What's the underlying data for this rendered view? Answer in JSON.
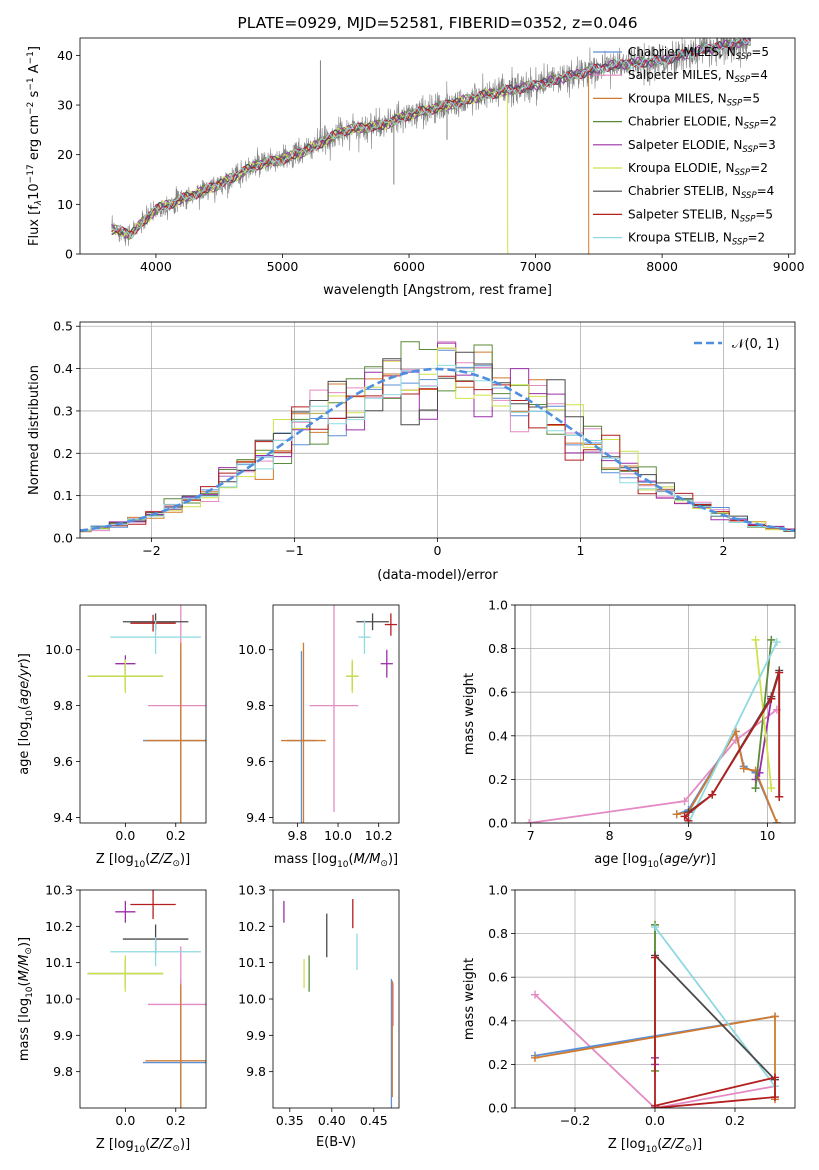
{
  "colors": {
    "chabrier_miles": "#5b8fd6",
    "salpeter_miles": "#e48ac4",
    "kroupa_miles": "#d27a2e",
    "chabrier_elodie": "#5a8a3a",
    "salpeter_elodie": "#9b2fa8",
    "kroupa_elodie": "#cfe24a",
    "chabrier_stelib": "#4a4a4a",
    "salpeter_stelib": "#b41f1f",
    "kroupa_stelib": "#8fd9e0",
    "data": "#808080",
    "normal": "#4f8fe0",
    "grid": "#b0b0b0"
  },
  "chart_data": [
    {
      "id": "spectrum",
      "type": "line",
      "title": "PLATE=0929, MJD=52581, FIBERID=0352, z=0.046",
      "xlabel": "wavelength [Angstrom, rest frame]",
      "ylabel_parts": [
        "Flux [f",
        "λ",
        "10",
        "−17",
        " erg cm",
        "−2",
        " s",
        "−1",
        " A",
        "−1",
        "]"
      ],
      "xlim": [
        3400,
        9050
      ],
      "ylim": [
        0,
        43.5
      ],
      "xticks": [
        4000,
        5000,
        6000,
        7000,
        8000,
        9000
      ],
      "yticks": [
        0,
        10,
        20,
        30,
        40
      ],
      "grid": false,
      "legend_position": "top-right",
      "legend": [
        {
          "base": "Chabrier MILES, N",
          "n": "5",
          "color": "chabrier_miles"
        },
        {
          "base": "Salpeter MILES, N",
          "n": "4",
          "color": "salpeter_miles"
        },
        {
          "base": "Kroupa MILES, N",
          "n": "5",
          "color": "kroupa_miles"
        },
        {
          "base": "Chabrier ELODIE, N",
          "n": "2",
          "color": "chabrier_elodie"
        },
        {
          "base": "Salpeter ELODIE, N",
          "n": "3",
          "color": "salpeter_elodie"
        },
        {
          "base": "Kroupa ELODIE, N",
          "n": "2",
          "color": "kroupa_elodie"
        },
        {
          "base": "Chabrier STELIB, N",
          "n": "4",
          "color": "chabrier_stelib"
        },
        {
          "base": "Salpeter STELIB, N",
          "n": "5",
          "color": "salpeter_stelib"
        },
        {
          "base": "Kroupa STELIB, N",
          "n": "2",
          "color": "kroupa_stelib"
        }
      ],
      "legend_sub": "SSP",
      "continuum": [
        [
          3650,
          5
        ],
        [
          3800,
          4
        ],
        [
          4000,
          9
        ],
        [
          4200,
          11
        ],
        [
          4500,
          14
        ],
        [
          4800,
          18
        ],
        [
          5000,
          19
        ],
        [
          5200,
          21
        ],
        [
          5500,
          25
        ],
        [
          5800,
          26
        ],
        [
          6000,
          28
        ],
        [
          6300,
          30
        ],
        [
          6600,
          32
        ],
        [
          7000,
          34
        ],
        [
          7300,
          36
        ],
        [
          7600,
          38
        ],
        [
          8000,
          39
        ],
        [
          8300,
          41
        ],
        [
          8700,
          43
        ]
      ],
      "spikes": [
        [
          5300,
          39
        ],
        [
          5880,
          14
        ],
        [
          6300,
          23
        ]
      ],
      "model_drops": [
        [
          6780,
          "kroupa_elodie"
        ],
        [
          7420,
          "kroupa_miles"
        ]
      ]
    },
    {
      "id": "residuals",
      "type": "histogram",
      "xlabel": "(data-model)/error",
      "ylabel": "Normed distribution",
      "xlim": [
        -2.5,
        2.5
      ],
      "ylim": [
        0,
        0.51
      ],
      "xticks": [
        -2,
        -1,
        0,
        1,
        2
      ],
      "yticks": [
        0.0,
        0.1,
        0.2,
        0.3,
        0.4,
        0.5
      ],
      "grid": true,
      "legend_position": "top-right",
      "legend": [
        {
          "label": "𝒩(0, 1)",
          "color": "normal",
          "style": "dashed"
        }
      ],
      "bins": 40
    },
    {
      "id": "age_vs_z",
      "type": "errorbar",
      "xlabel": "Z [log10(Z/Z⊙)]",
      "ylabel": "age [log10(age/yr)]",
      "xlim": [
        -0.18,
        0.32
      ],
      "ylim": [
        9.38,
        10.16
      ],
      "xticks": [
        0.0,
        0.2
      ],
      "yticks": [
        9.4,
        9.6,
        9.8,
        10.0
      ],
      "grid": false,
      "points": [
        {
          "x": 0.22,
          "y": 9.675,
          "xerr": 0.15,
          "yerr": 0.32,
          "color": "chabrier_miles"
        },
        {
          "x": 0.22,
          "y": 9.8,
          "xerr": 0.13,
          "yerr": 0.38,
          "color": "salpeter_miles"
        },
        {
          "x": 0.22,
          "y": 9.675,
          "xerr": 0.14,
          "yerr": 0.35,
          "color": "kroupa_miles"
        },
        {
          "x": 0.0,
          "y": 9.905,
          "xerr": 0.15,
          "yerr": 0.05,
          "color": "chabrier_elodie"
        },
        {
          "x": 0.0,
          "y": 9.95,
          "xerr": 0.04,
          "yerr": 0.03,
          "color": "salpeter_elodie"
        },
        {
          "x": 0.0,
          "y": 9.905,
          "xerr": 0.15,
          "yerr": 0.06,
          "color": "kroupa_elodie"
        },
        {
          "x": 0.12,
          "y": 10.1,
          "xerr": 0.13,
          "yerr": 0.03,
          "color": "chabrier_stelib"
        },
        {
          "x": 0.11,
          "y": 10.095,
          "xerr": 0.09,
          "yerr": 0.03,
          "color": "salpeter_stelib"
        },
        {
          "x": 0.12,
          "y": 10.045,
          "xerr": 0.18,
          "yerr": 0.06,
          "color": "kroupa_stelib"
        }
      ]
    },
    {
      "id": "age_vs_mass",
      "type": "errorbar",
      "xlabel": "mass [log10(M/M⊙)]",
      "ylabel": "",
      "xlim": [
        9.68,
        10.3
      ],
      "ylim": [
        9.38,
        10.16
      ],
      "xticks": [
        9.8,
        10.0,
        10.2
      ],
      "yticks": [
        9.4,
        9.6,
        9.8,
        10.0
      ],
      "grid": false,
      "points": [
        {
          "x": 9.82,
          "y": 9.675,
          "xerr": 0.07,
          "yerr": 0.32,
          "color": "chabrier_miles"
        },
        {
          "x": 9.98,
          "y": 9.8,
          "xerr": 0.12,
          "yerr": 0.38,
          "color": "salpeter_miles"
        },
        {
          "x": 9.83,
          "y": 9.675,
          "xerr": 0.11,
          "yerr": 0.35,
          "color": "kroupa_miles"
        },
        {
          "x": 10.07,
          "y": 9.905,
          "xerr": 0.03,
          "yerr": 0.05,
          "color": "chabrier_elodie"
        },
        {
          "x": 10.24,
          "y": 9.95,
          "xerr": 0.03,
          "yerr": 0.05,
          "color": "salpeter_elodie"
        },
        {
          "x": 10.07,
          "y": 9.905,
          "xerr": 0.03,
          "yerr": 0.06,
          "color": "kroupa_elodie"
        },
        {
          "x": 10.17,
          "y": 10.1,
          "xerr": 0.08,
          "yerr": 0.03,
          "color": "chabrier_stelib"
        },
        {
          "x": 10.26,
          "y": 10.09,
          "xerr": 0.03,
          "yerr": 0.04,
          "color": "salpeter_stelib"
        },
        {
          "x": 10.13,
          "y": 10.045,
          "xerr": 0.03,
          "yerr": 0.06,
          "color": "kroupa_stelib"
        }
      ]
    },
    {
      "id": "weight_vs_age",
      "type": "line",
      "xlabel": "age [log10(age/yr)]",
      "ylabel": "mass weight",
      "xlim": [
        6.8,
        10.35
      ],
      "ylim": [
        0,
        1.0
      ],
      "xticks": [
        7,
        8,
        9,
        10
      ],
      "yticks": [
        0.0,
        0.2,
        0.4,
        0.6,
        0.8,
        1.0
      ],
      "grid": true,
      "series": [
        {
          "color": "salpeter_miles",
          "x": [
            6.98,
            8.95,
            9.6,
            10.12
          ],
          "y": [
            0.0,
            0.1,
            0.38,
            0.52
          ]
        },
        {
          "color": "chabrier_miles",
          "x": [
            8.85,
            9.0,
            9.6,
            9.7,
            9.85,
            10.12
          ],
          "y": [
            0.04,
            0.06,
            0.42,
            0.26,
            0.23,
            0.0
          ]
        },
        {
          "color": "kroupa_miles",
          "x": [
            8.85,
            9.0,
            9.6,
            9.7,
            9.85,
            10.12
          ],
          "y": [
            0.04,
            0.05,
            0.42,
            0.25,
            0.24,
            0.0
          ]
        },
        {
          "color": "salpeter_elodie",
          "x": [
            9.85,
            9.9,
            10.05
          ],
          "y": [
            0.2,
            0.23,
            0.57
          ]
        },
        {
          "color": "chabrier_elodie",
          "x": [
            9.85,
            10.05
          ],
          "y": [
            0.16,
            0.84
          ]
        },
        {
          "color": "kroupa_elodie",
          "x": [
            9.85,
            10.05
          ],
          "y": [
            0.84,
            0.16
          ]
        },
        {
          "color": "kroupa_stelib",
          "x": [
            9.0,
            10.12
          ],
          "y": [
            0.0,
            0.83
          ]
        },
        {
          "color": "chabrier_stelib",
          "x": [
            9.0,
            9.3,
            10.05,
            10.15,
            10.15
          ],
          "y": [
            0.05,
            0.13,
            0.58,
            0.7,
            0.12
          ]
        },
        {
          "color": "salpeter_stelib",
          "x": [
            9.0,
            8.95,
            9.3,
            10.05,
            10.15,
            10.15
          ],
          "y": [
            0.01,
            0.03,
            0.13,
            0.57,
            0.69,
            0.12
          ]
        }
      ]
    },
    {
      "id": "mass_vs_z",
      "type": "errorbar",
      "xlabel": "Z [log10(Z/Z⊙)]",
      "ylabel": "mass [log10(M/M⊙)]",
      "xlim": [
        -0.18,
        0.32
      ],
      "ylim": [
        9.7,
        10.3
      ],
      "xticks": [
        0.0,
        0.2
      ],
      "yticks": [
        9.8,
        9.9,
        10.0,
        10.1,
        10.2,
        10.3
      ],
      "grid": false,
      "points": [
        {
          "x": 0.22,
          "y": 9.825,
          "xerr": 0.15,
          "yerr": 0.23,
          "color": "chabrier_miles"
        },
        {
          "x": 0.22,
          "y": 9.985,
          "xerr": 0.13,
          "yerr": 0.16,
          "color": "salpeter_miles"
        },
        {
          "x": 0.22,
          "y": 9.83,
          "xerr": 0.14,
          "yerr": 0.21,
          "color": "kroupa_miles"
        },
        {
          "x": 0.0,
          "y": 10.07,
          "xerr": 0.15,
          "yerr": 0.04,
          "color": "chabrier_elodie"
        },
        {
          "x": 0.0,
          "y": 10.24,
          "xerr": 0.04,
          "yerr": 0.03,
          "color": "salpeter_elodie"
        },
        {
          "x": 0.0,
          "y": 10.07,
          "xerr": 0.15,
          "yerr": 0.05,
          "color": "kroupa_elodie"
        },
        {
          "x": 0.12,
          "y": 10.165,
          "xerr": 0.13,
          "yerr": 0.04,
          "color": "chabrier_stelib"
        },
        {
          "x": 0.11,
          "y": 10.26,
          "xerr": 0.09,
          "yerr": 0.04,
          "color": "salpeter_stelib"
        },
        {
          "x": 0.12,
          "y": 10.13,
          "xerr": 0.18,
          "yerr": 0.04,
          "color": "kroupa_stelib"
        }
      ]
    },
    {
      "id": "mass_vs_ebv",
      "type": "errorbar",
      "xlabel": "E(B-V)",
      "ylabel": "",
      "xlim": [
        0.33,
        0.48
      ],
      "ylim": [
        9.7,
        10.3
      ],
      "xticks": [
        0.35,
        0.4,
        0.45
      ],
      "yticks": [
        9.8,
        9.9,
        10.0,
        10.1,
        10.2,
        10.3
      ],
      "grid": false,
      "points": [
        {
          "x": 0.471,
          "y": 9.825,
          "xerr": 0.0,
          "yerr": 0.23,
          "color": "chabrier_miles"
        },
        {
          "x": 0.473,
          "y": 9.985,
          "xerr": 0.0,
          "yerr": 0.06,
          "color": "salpeter_miles"
        },
        {
          "x": 0.472,
          "y": 9.89,
          "xerr": 0.0,
          "yerr": 0.16,
          "color": "kroupa_miles"
        },
        {
          "x": 0.373,
          "y": 10.07,
          "xerr": 0.0,
          "yerr": 0.05,
          "color": "chabrier_elodie"
        },
        {
          "x": 0.343,
          "y": 10.24,
          "xerr": 0.0,
          "yerr": 0.03,
          "color": "salpeter_elodie"
        },
        {
          "x": 0.367,
          "y": 10.07,
          "xerr": 0.0,
          "yerr": 0.04,
          "color": "kroupa_elodie"
        },
        {
          "x": 0.394,
          "y": 10.175,
          "xerr": 0.0,
          "yerr": 0.06,
          "color": "chabrier_stelib"
        },
        {
          "x": 0.425,
          "y": 10.235,
          "xerr": 0.0,
          "yerr": 0.04,
          "color": "salpeter_stelib"
        },
        {
          "x": 0.43,
          "y": 10.13,
          "xerr": 0.0,
          "yerr": 0.05,
          "color": "kroupa_stelib"
        }
      ]
    },
    {
      "id": "weight_vs_z",
      "type": "line",
      "xlabel": "Z [log10(Z/Z⊙)]",
      "ylabel": "mass weight",
      "xlim": [
        -0.35,
        0.35
      ],
      "ylim": [
        0,
        1.0
      ],
      "xticks": [
        -0.2,
        0.0,
        0.2
      ],
      "yticks": [
        0.0,
        0.2,
        0.4,
        0.6,
        0.8,
        1.0
      ],
      "grid": true,
      "series": [
        {
          "color": "salpeter_miles",
          "x": [
            -0.3,
            0.0,
            0.3
          ],
          "y": [
            0.52,
            0.0,
            0.1
          ]
        },
        {
          "color": "chabrier_miles",
          "x": [
            -0.3,
            0.3
          ],
          "y": [
            0.24,
            0.42
          ]
        },
        {
          "color": "kroupa_miles",
          "x": [
            -0.3,
            0.3,
            0.3
          ],
          "y": [
            0.23,
            0.42,
            0.04
          ]
        },
        {
          "color": "kroupa_elodie",
          "x": [
            0.0,
            0.0
          ],
          "y": [
            0.84,
            0.17
          ]
        },
        {
          "color": "chabrier_elodie",
          "x": [
            0.0,
            0.0
          ],
          "y": [
            0.17,
            0.84
          ]
        },
        {
          "color": "salpeter_elodie",
          "x": [
            0.0,
            0.0
          ],
          "y": [
            0.2,
            0.23
          ]
        },
        {
          "color": "kroupa_stelib",
          "x": [
            0.0,
            0.3
          ],
          "y": [
            0.83,
            0.1
          ]
        },
        {
          "color": "chabrier_stelib",
          "x": [
            0.0,
            0.3
          ],
          "y": [
            0.7,
            0.13
          ]
        },
        {
          "color": "salpeter_stelib",
          "x": [
            0.0,
            0.0,
            0.3,
            0.3,
            0.0
          ],
          "y": [
            0.69,
            0.01,
            0.14,
            0.05,
            0.0
          ]
        }
      ]
    }
  ]
}
